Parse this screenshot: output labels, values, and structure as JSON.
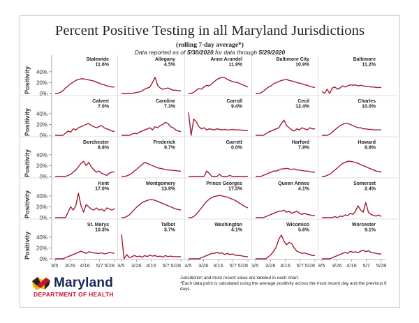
{
  "title": "Percent Positive Testing in all Maryland Jurisdictions",
  "subtitle": "(rolling 7-day average*)",
  "data_note_prefix": "Data reported as of ",
  "data_note_date1": "5/30/2020",
  "data_note_mid": " for data through ",
  "data_note_date2": "5/29/2020",
  "footer_note_line1": "Jurisdiction and most recent value are labeled in each chart.",
  "footer_note_line2": "*Each data point is calculated using the average positivity across the most recent day and the previous 6 days.",
  "logo": {
    "name": "Maryland",
    "department": "DEPARTMENT OF HEALTH"
  },
  "colors": {
    "line": "#a3192f",
    "frame": "#c9c9c9",
    "divider": "#d5d5d5",
    "logo_blue": "#15285a",
    "logo_red": "#c8102e",
    "logo_gold": "#f2b705"
  },
  "chart_data": {
    "type": "line",
    "layout": "small-multiples 5x5",
    "ylabel": "Positivity",
    "ylim": [
      0,
      45
    ],
    "yticks": [
      "0%",
      "20%",
      "40%"
    ],
    "xticks": [
      "3/5",
      "3/26",
      "4/16",
      "5/7",
      "5/28"
    ],
    "panels": [
      {
        "name": "Statewide",
        "last": "11.6%",
        "values": [
          0,
          0,
          2,
          5,
          10,
          14,
          18,
          21,
          24,
          26,
          27,
          27,
          26,
          25,
          24,
          23,
          21,
          19,
          17,
          16,
          14,
          13,
          12,
          12
        ]
      },
      {
        "name": "Allegany",
        "last": "4.5%",
        "values": [
          0,
          0,
          0,
          0,
          0,
          1,
          2,
          3,
          5,
          8,
          10,
          12,
          20,
          30,
          15,
          10,
          8,
          9,
          10,
          8,
          6,
          6,
          5,
          5
        ]
      },
      {
        "name": "Anne Arundel",
        "last": "11.9%",
        "values": [
          0,
          0,
          2,
          6,
          9,
          8,
          12,
          15,
          14,
          18,
          22,
          26,
          28,
          30,
          29,
          26,
          24,
          22,
          21,
          20,
          18,
          16,
          14,
          12
        ]
      },
      {
        "name": "Baltimore City",
        "last": "10.9%",
        "values": [
          0,
          0,
          1,
          4,
          8,
          12,
          14,
          18,
          20,
          22,
          24,
          25,
          26,
          24,
          23,
          22,
          20,
          19,
          18,
          16,
          15,
          13,
          12,
          11
        ]
      },
      {
        "name": "Baltimore",
        "last": "11.2%",
        "values": [
          4,
          0,
          8,
          0,
          10,
          12,
          8,
          10,
          14,
          12,
          14,
          16,
          15,
          16,
          14,
          15,
          14,
          13,
          13,
          12,
          12,
          11,
          11,
          11
        ]
      },
      {
        "name": "Calvert",
        "last": "7.0%",
        "values": [
          0,
          0,
          0,
          0,
          4,
          8,
          6,
          12,
          10,
          14,
          16,
          18,
          20,
          22,
          18,
          16,
          14,
          16,
          18,
          14,
          12,
          10,
          8,
          7
        ]
      },
      {
        "name": "Caroline",
        "last": "7.3%",
        "values": [
          0,
          0,
          0,
          0,
          2,
          4,
          3,
          6,
          8,
          10,
          12,
          14,
          10,
          16,
          14,
          18,
          20,
          24,
          22,
          16,
          14,
          10,
          8,
          7
        ]
      },
      {
        "name": "Carroll",
        "last": "9.4%",
        "values": [
          42,
          0,
          30,
          25,
          16,
          12,
          14,
          10,
          12,
          11,
          10,
          12,
          11,
          10,
          11,
          10,
          10,
          11,
          10,
          10,
          10,
          9,
          9,
          9
        ]
      },
      {
        "name": "Cecil",
        "last": "12.4%",
        "values": [
          0,
          0,
          0,
          0,
          3,
          6,
          8,
          10,
          12,
          14,
          22,
          28,
          18,
          14,
          10,
          8,
          12,
          10,
          14,
          12,
          10,
          14,
          12,
          12
        ]
      },
      {
        "name": "Charles",
        "last": "10.0%",
        "values": [
          0,
          0,
          0,
          2,
          6,
          10,
          14,
          18,
          20,
          22,
          22,
          20,
          18,
          16,
          14,
          14,
          12,
          12,
          11,
          11,
          10,
          10,
          10,
          10
        ]
      },
      {
        "name": "Dorchester",
        "last": "8.8%",
        "values": [
          0,
          0,
          0,
          0,
          0,
          2,
          4,
          8,
          12,
          18,
          24,
          28,
          20,
          26,
          18,
          12,
          8,
          10,
          6,
          4,
          2,
          6,
          8,
          9
        ]
      },
      {
        "name": "Frederick",
        "last": "9.7%",
        "values": [
          0,
          0,
          1,
          3,
          6,
          10,
          14,
          18,
          22,
          26,
          24,
          22,
          20,
          18,
          16,
          15,
          14,
          13,
          12,
          12,
          11,
          11,
          10,
          10
        ]
      },
      {
        "name": "Garrett",
        "last": "0.0%",
        "values": [
          0,
          0,
          0,
          0,
          0,
          0,
          0,
          10,
          6,
          0,
          0,
          0,
          4,
          0,
          0,
          0,
          2,
          0,
          0,
          0,
          0,
          0,
          0,
          0
        ]
      },
      {
        "name": "Harford",
        "last": "7.9%",
        "values": [
          0,
          0,
          0,
          2,
          4,
          6,
          8,
          10,
          10,
          12,
          14,
          14,
          15,
          14,
          13,
          14,
          12,
          12,
          11,
          10,
          10,
          9,
          8,
          8
        ]
      },
      {
        "name": "Howard",
        "last": "8.8%",
        "values": [
          0,
          0,
          2,
          4,
          8,
          12,
          16,
          20,
          24,
          26,
          28,
          28,
          27,
          26,
          24,
          22,
          20,
          18,
          16,
          14,
          12,
          10,
          9,
          9
        ]
      },
      {
        "name": "Kent",
        "last": "17.0%",
        "values": [
          0,
          0,
          0,
          0,
          0,
          10,
          20,
          14,
          22,
          45,
          22,
          10,
          24,
          20,
          16,
          14,
          18,
          14,
          16,
          12,
          18,
          16,
          14,
          17
        ]
      },
      {
        "name": "Montgomery",
        "last": "13.9%",
        "values": [
          0,
          0,
          2,
          5,
          10,
          15,
          20,
          24,
          28,
          30,
          32,
          33,
          33,
          32,
          30,
          28,
          26,
          24,
          22,
          20,
          18,
          16,
          15,
          14
        ]
      },
      {
        "name": "Prince Georges",
        "last": "17.5%",
        "values": [
          0,
          0,
          2,
          6,
          12,
          18,
          24,
          30,
          34,
          37,
          39,
          40,
          41,
          40,
          39,
          38,
          36,
          34,
          32,
          29,
          26,
          23,
          20,
          18
        ]
      },
      {
        "name": "Queen Annes",
        "last": "4.1%",
        "values": [
          0,
          0,
          0,
          0,
          2,
          4,
          6,
          8,
          10,
          12,
          12,
          14,
          10,
          12,
          8,
          10,
          12,
          8,
          6,
          8,
          6,
          5,
          4,
          4
        ]
      },
      {
        "name": "Somerset",
        "last": "2.4%",
        "values": [
          0,
          0,
          0,
          0,
          0,
          2,
          0,
          3,
          2,
          5,
          4,
          8,
          6,
          12,
          22,
          14,
          10,
          28,
          10,
          6,
          4,
          3,
          5,
          2
        ]
      },
      {
        "name": "St. Marys",
        "last": "10.3%",
        "values": [
          0,
          0,
          0,
          0,
          2,
          4,
          6,
          8,
          10,
          12,
          14,
          12,
          10,
          13,
          12,
          11,
          10,
          10,
          11,
          9,
          10,
          12,
          11,
          10
        ]
      },
      {
        "name": "Talbot",
        "last": "3.7%",
        "values": [
          45,
          0,
          8,
          2,
          4,
          6,
          4,
          5,
          3,
          6,
          4,
          7,
          5,
          6,
          4,
          5,
          3,
          6,
          4,
          5,
          4,
          4,
          4,
          4
        ]
      },
      {
        "name": "Washington",
        "last": "4.1%",
        "values": [
          0,
          0,
          0,
          0,
          0,
          2,
          4,
          6,
          8,
          10,
          10,
          12,
          10,
          11,
          8,
          10,
          8,
          9,
          7,
          6,
          6,
          5,
          4,
          4
        ]
      },
      {
        "name": "Wicomico",
        "last": "5.6%",
        "values": [
          0,
          0,
          0,
          0,
          0,
          4,
          8,
          14,
          22,
          36,
          44,
          32,
          26,
          30,
          28,
          20,
          14,
          12,
          10,
          11,
          9,
          8,
          6,
          6
        ]
      },
      {
        "name": "Worcester",
        "last": "9.1%",
        "values": [
          0,
          0,
          0,
          0,
          2,
          4,
          6,
          8,
          10,
          12,
          10,
          14,
          12,
          13,
          11,
          14,
          16,
          13,
          15,
          12,
          11,
          10,
          9,
          9
        ]
      }
    ]
  }
}
